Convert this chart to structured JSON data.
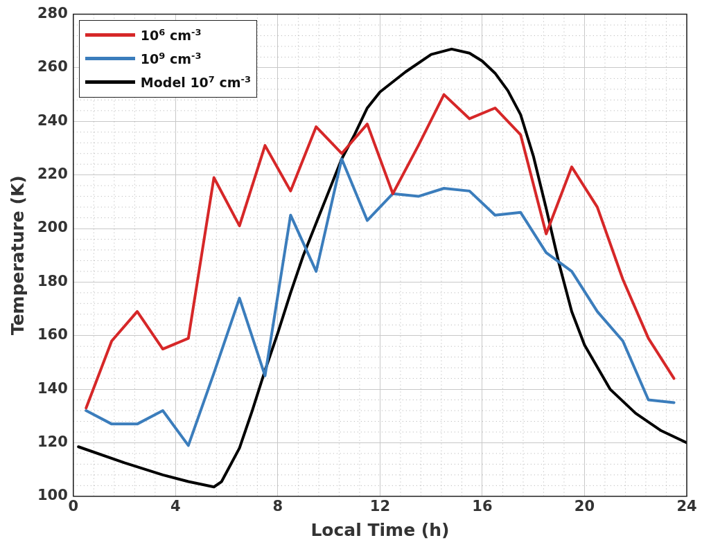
{
  "chart_data": {
    "type": "line",
    "xlabel": "Local Time (h)",
    "ylabel": "Temperature (K)",
    "xlim": [
      0,
      24
    ],
    "xticks": [
      0,
      4,
      8,
      12,
      16,
      20,
      24
    ],
    "ylim": [
      100,
      280
    ],
    "yticks": [
      100,
      120,
      140,
      160,
      180,
      200,
      220,
      240,
      260,
      280
    ],
    "grid": true,
    "legend": "top left",
    "marker": "none",
    "line_style": "solid",
    "series": [
      {
        "name": "10$^{6}$ cm$^{-3}$",
        "color": "#d62728",
        "x": [
          0.5,
          1.5,
          2.5,
          3.5,
          4.5,
          5.5,
          6.5,
          7.5,
          8.5,
          9.5,
          10.5,
          11.5,
          12.5,
          13.5,
          14.5,
          15.5,
          16.5,
          17.5,
          18.5,
          19.5,
          20.5,
          21.5,
          22.5,
          23.5
        ],
        "values": [
          133,
          158,
          169,
          155,
          159,
          219,
          201,
          231,
          214,
          238,
          228,
          239,
          213,
          231,
          250,
          241,
          245,
          235,
          198,
          223,
          208,
          181,
          159,
          144
        ]
      },
      {
        "name": "10$^{9}$ cm$^{-3}$",
        "color": "#3b7dbc",
        "x": [
          0.5,
          1.5,
          2.5,
          3.5,
          4.5,
          5.5,
          6.5,
          7.5,
          8.5,
          9.5,
          10.5,
          11.5,
          12.5,
          13.5,
          14.5,
          15.5,
          16.5,
          17.5,
          18.5,
          19.5,
          20.5,
          21.5,
          22.5,
          23.5
        ],
        "values": [
          132,
          127,
          127,
          132,
          119,
          146,
          174,
          145,
          205,
          184,
          226,
          203,
          213,
          212,
          215,
          214,
          205,
          206,
          191,
          184,
          169,
          158,
          136,
          135
        ]
      },
      {
        "name": "Model 10$^{7}$ cm$^{-3}$",
        "color": "#000000",
        "x": [
          0.2,
          2,
          3.5,
          4.5,
          5.5,
          5.8,
          6.5,
          7,
          7.5,
          8,
          8.5,
          9,
          9.5,
          10,
          10.5,
          11,
          11.5,
          12,
          13,
          14,
          14.8,
          15.5,
          16,
          16.5,
          17,
          17.5,
          18,
          18.5,
          19,
          19.5,
          20,
          21,
          22,
          23,
          24
        ],
        "values": [
          118.5,
          112.5,
          108,
          105.5,
          103.5,
          105.5,
          118,
          132,
          147,
          161,
          176,
          190,
          202,
          214,
          226,
          235,
          245,
          251,
          258.5,
          265,
          267,
          265.5,
          262.5,
          258,
          251.5,
          242.5,
          227,
          207.5,
          187,
          169,
          156.5,
          140,
          131,
          124.5,
          120
        ]
      }
    ]
  }
}
